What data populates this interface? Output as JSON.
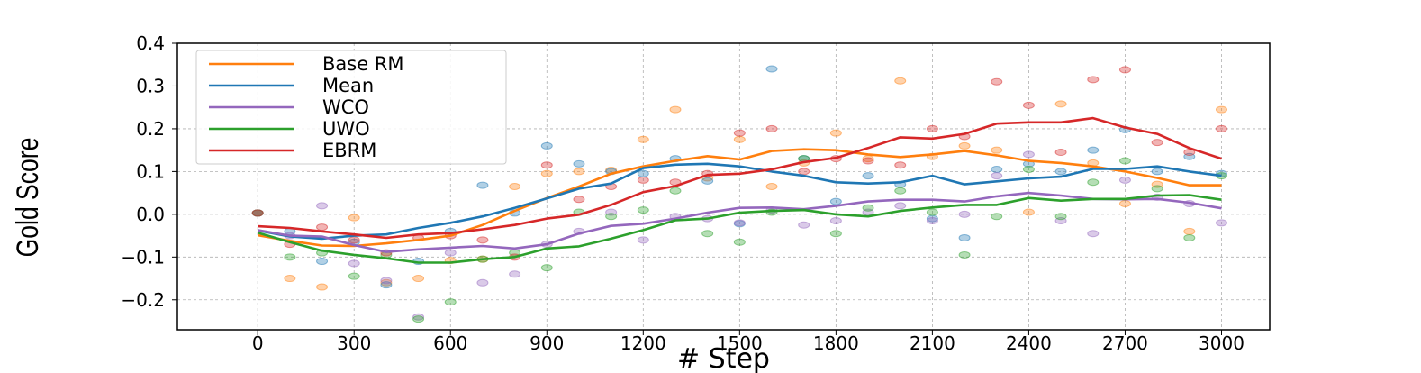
{
  "chart_data": {
    "type": "line",
    "title": "",
    "xlabel": "# Step",
    "ylabel": "Gold Score",
    "xlim": [
      -250,
      3150
    ],
    "ylim": [
      -0.27,
      0.4
    ],
    "x_ticks": [
      0,
      300,
      600,
      900,
      1200,
      1500,
      1800,
      2100,
      2400,
      2700,
      3000
    ],
    "x_tick_labels": [
      "0",
      "300",
      "600",
      "900",
      "1200",
      "1500",
      "1800",
      "2100",
      "2400",
      "2700",
      "3000"
    ],
    "y_ticks": [
      -0.2,
      -0.1,
      0.0,
      0.1,
      0.2,
      0.3,
      0.4
    ],
    "y_tick_labels": [
      "−0.2",
      "−0.1",
      "0.0",
      "0.1",
      "0.2",
      "0.3",
      "0.4"
    ],
    "grid": {
      "x": true,
      "y": true,
      "style": "dashed"
    },
    "legend_position": "top-left",
    "x": [
      0,
      100,
      200,
      300,
      400,
      500,
      600,
      700,
      800,
      900,
      1000,
      1100,
      1200,
      1300,
      1400,
      1500,
      1600,
      1700,
      1800,
      1900,
      2000,
      2100,
      2200,
      2300,
      2400,
      2500,
      2600,
      2700,
      2800,
      2900,
      3000
    ],
    "series": [
      {
        "name": "Base RM",
        "color": "#ff7f0e",
        "values": [
          -0.049,
          -0.062,
          -0.073,
          -0.074,
          -0.068,
          -0.06,
          -0.05,
          -0.025,
          0.008,
          0.038,
          0.065,
          0.095,
          0.112,
          0.125,
          0.136,
          0.128,
          0.148,
          0.152,
          0.15,
          0.14,
          0.134,
          0.14,
          0.148,
          0.138,
          0.125,
          0.12,
          0.112,
          0.1,
          0.085,
          0.068,
          0.068
        ],
        "scatter": [
          0.003,
          -0.15,
          -0.17,
          -0.008,
          -0.16,
          -0.15,
          -0.108,
          -0.105,
          0.065,
          0.095,
          0.1,
          0.103,
          0.175,
          0.245,
          0.085,
          0.175,
          0.065,
          0.12,
          0.19,
          0.13,
          0.312,
          0.135,
          0.16,
          0.15,
          0.005,
          0.258,
          0.12,
          0.025,
          0.07,
          -0.04,
          0.245
        ]
      },
      {
        "name": "Mean",
        "color": "#1f77b4",
        "values": [
          -0.038,
          -0.052,
          -0.057,
          -0.05,
          -0.047,
          -0.032,
          -0.02,
          -0.005,
          0.015,
          0.037,
          0.06,
          0.072,
          0.108,
          0.116,
          0.118,
          0.112,
          0.1,
          0.09,
          0.075,
          0.072,
          0.075,
          0.09,
          0.07,
          0.077,
          0.084,
          0.088,
          0.106,
          0.106,
          0.112,
          0.1,
          0.09
        ],
        "scatter": [
          0.003,
          -0.04,
          -0.11,
          -0.065,
          -0.165,
          -0.11,
          -0.04,
          0.068,
          0.003,
          0.16,
          0.118,
          0.1,
          0.095,
          0.13,
          0.078,
          -0.022,
          0.34,
          0.13,
          0.03,
          0.09,
          0.07,
          -0.01,
          -0.055,
          0.105,
          0.118,
          0.1,
          0.15,
          0.198,
          0.1,
          0.135,
          0.095
        ]
      },
      {
        "name": "WCO",
        "color": "#9467bd",
        "values": [
          -0.037,
          -0.05,
          -0.052,
          -0.072,
          -0.088,
          -0.082,
          -0.078,
          -0.074,
          -0.08,
          -0.07,
          -0.045,
          -0.027,
          -0.022,
          -0.01,
          0.004,
          0.015,
          0.016,
          0.012,
          0.02,
          0.03,
          0.034,
          0.034,
          0.03,
          0.042,
          0.05,
          0.044,
          0.036,
          0.035,
          0.036,
          0.027,
          0.014
        ],
        "scatter": [
          0.003,
          -0.05,
          0.02,
          -0.115,
          -0.155,
          -0.24,
          -0.09,
          -0.16,
          -0.14,
          -0.07,
          -0.04,
          0.005,
          -0.06,
          -0.005,
          -0.01,
          -0.02,
          0.01,
          -0.025,
          -0.015,
          0.005,
          0.02,
          -0.015,
          0.0,
          0.09,
          0.14,
          -0.015,
          -0.045,
          0.08,
          0.04,
          0.025,
          -0.02
        ]
      },
      {
        "name": "UWO",
        "color": "#2ca02c",
        "values": [
          -0.043,
          -0.065,
          -0.085,
          -0.095,
          -0.103,
          -0.113,
          -0.113,
          -0.105,
          -0.1,
          -0.08,
          -0.075,
          -0.057,
          -0.037,
          -0.014,
          -0.01,
          0.004,
          0.008,
          0.01,
          0.0,
          -0.005,
          0.008,
          0.016,
          0.022,
          0.022,
          0.038,
          0.032,
          0.036,
          0.036,
          0.044,
          0.045,
          0.034
        ],
        "scatter": [
          0.003,
          -0.1,
          -0.09,
          -0.145,
          -0.095,
          -0.245,
          -0.205,
          -0.105,
          -0.09,
          -0.125,
          0.005,
          -0.005,
          0.01,
          0.055,
          -0.045,
          -0.065,
          0.005,
          0.13,
          -0.045,
          0.015,
          0.055,
          0.005,
          -0.095,
          -0.005,
          0.105,
          -0.005,
          0.075,
          0.125,
          0.06,
          -0.055,
          0.09
        ]
      },
      {
        "name": "EBRM",
        "color": "#d62728",
        "values": [
          -0.028,
          -0.032,
          -0.04,
          -0.047,
          -0.055,
          -0.047,
          -0.044,
          -0.035,
          -0.025,
          -0.01,
          -0.001,
          0.022,
          0.052,
          0.066,
          0.092,
          0.095,
          0.105,
          0.122,
          0.132,
          0.155,
          0.18,
          0.177,
          0.188,
          0.212,
          0.215,
          0.215,
          0.225,
          0.203,
          0.188,
          0.155,
          0.13
        ],
        "scatter": [
          0.003,
          -0.07,
          -0.03,
          -0.06,
          -0.09,
          -0.055,
          -0.05,
          -0.06,
          -0.1,
          0.115,
          0.035,
          0.065,
          0.08,
          0.075,
          0.095,
          0.19,
          0.2,
          0.1,
          0.13,
          0.125,
          0.115,
          0.2,
          0.182,
          0.31,
          0.255,
          0.145,
          0.315,
          0.338,
          0.168,
          0.145,
          0.2
        ]
      }
    ]
  }
}
